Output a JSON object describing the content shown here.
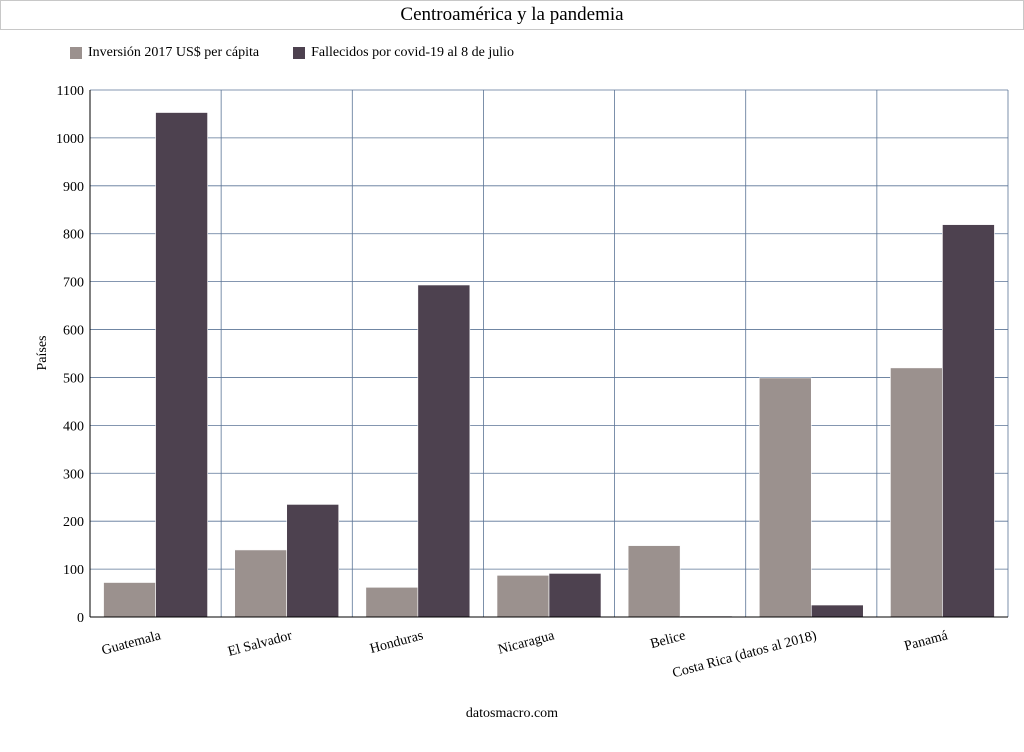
{
  "chart_data": {
    "type": "bar",
    "title": "Centroamérica y la pandemia",
    "ylabel": "Países",
    "xlabel": "",
    "ylim": [
      0,
      1100
    ],
    "yticks": [
      0,
      100,
      200,
      300,
      400,
      500,
      600,
      700,
      800,
      900,
      1000,
      1100
    ],
    "categories": [
      "Guatemala",
      "El Salvador",
      "Honduras",
      "Nicaragua",
      "Belice",
      "Costa Rica (datos al 2018)",
      "Panamá"
    ],
    "series": [
      {
        "name": "Inversión 2017 US$ per cápita",
        "color": "#9b918e",
        "values": [
          72,
          140,
          62,
          87,
          149,
          499,
          520
        ]
      },
      {
        "name": "Fallecidos por covid-19 al 8 de julio",
        "color": "#4d414f",
        "values": [
          1053,
          235,
          693,
          91,
          2,
          25,
          819
        ]
      }
    ],
    "grid": true,
    "legend_position": "top-left"
  },
  "footer": {
    "source": "datosmacro.com"
  }
}
